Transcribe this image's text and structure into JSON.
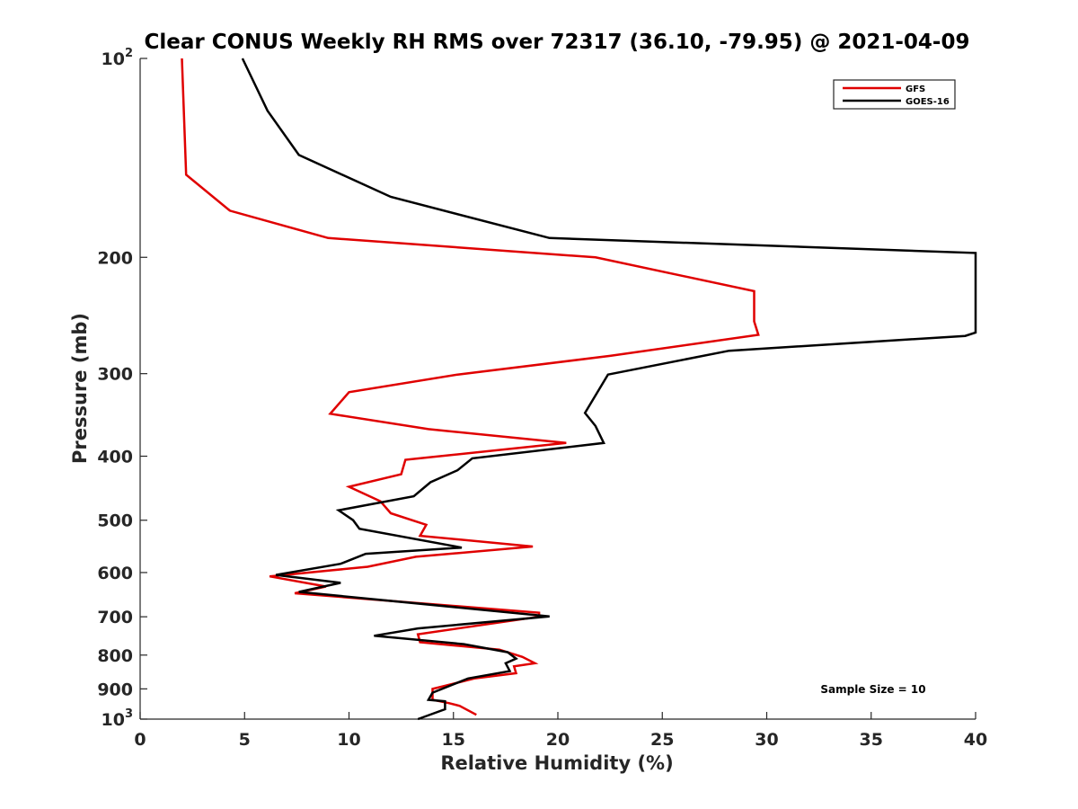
{
  "chart_data": {
    "type": "line",
    "title": "Clear CONUS Weekly RH RMS over 72317 (36.10, -79.95) @ 2021-04-09",
    "xlabel": "Relative Humidity (%)",
    "ylabel": "Pressure (mb)",
    "xlim": [
      0,
      40
    ],
    "ylim": [
      100,
      1000
    ],
    "y_scale": "log",
    "y_reversed": true,
    "grid": false,
    "legend_position": "top-right",
    "x_ticks": [
      0,
      5,
      10,
      15,
      20,
      25,
      30,
      35,
      40
    ],
    "y_ticks": [
      {
        "value": 100,
        "base": "10",
        "exp": "2"
      },
      {
        "value": 200,
        "label": "200"
      },
      {
        "value": 300,
        "label": "300"
      },
      {
        "value": 400,
        "label": "400"
      },
      {
        "value": 500,
        "label": "500"
      },
      {
        "value": 600,
        "label": "600"
      },
      {
        "value": 700,
        "label": "700"
      },
      {
        "value": 800,
        "label": "800"
      },
      {
        "value": 900,
        "label": "900"
      },
      {
        "value": 1000,
        "base": "10",
        "exp": "3"
      }
    ],
    "series": [
      {
        "name": "GFS",
        "color": "#e00000",
        "points": [
          {
            "x": 2.0,
            "y": 100
          },
          {
            "x": 2.2,
            "y": 150
          },
          {
            "x": 4.3,
            "y": 170
          },
          {
            "x": 9.0,
            "y": 187
          },
          {
            "x": 21.8,
            "y": 200
          },
          {
            "x": 29.4,
            "y": 225
          },
          {
            "x": 29.4,
            "y": 250
          },
          {
            "x": 29.6,
            "y": 262
          },
          {
            "x": 22.5,
            "y": 282
          },
          {
            "x": 15.2,
            "y": 301
          },
          {
            "x": 10.0,
            "y": 320
          },
          {
            "x": 9.1,
            "y": 345
          },
          {
            "x": 13.8,
            "y": 364
          },
          {
            "x": 20.4,
            "y": 382
          },
          {
            "x": 12.7,
            "y": 405
          },
          {
            "x": 12.5,
            "y": 426
          },
          {
            "x": 10.0,
            "y": 445
          },
          {
            "x": 11.5,
            "y": 468
          },
          {
            "x": 12.0,
            "y": 488
          },
          {
            "x": 13.7,
            "y": 508
          },
          {
            "x": 13.4,
            "y": 528
          },
          {
            "x": 18.8,
            "y": 548
          },
          {
            "x": 13.2,
            "y": 568
          },
          {
            "x": 10.9,
            "y": 588
          },
          {
            "x": 6.2,
            "y": 608
          },
          {
            "x": 8.9,
            "y": 630
          },
          {
            "x": 7.4,
            "y": 645
          },
          {
            "x": 19.1,
            "y": 690
          },
          {
            "x": 19.1,
            "y": 700
          },
          {
            "x": 13.3,
            "y": 744
          },
          {
            "x": 13.4,
            "y": 765
          },
          {
            "x": 17.2,
            "y": 785
          },
          {
            "x": 18.3,
            "y": 805
          },
          {
            "x": 18.9,
            "y": 823
          },
          {
            "x": 17.9,
            "y": 832
          },
          {
            "x": 18.0,
            "y": 852
          },
          {
            "x": 16.0,
            "y": 868
          },
          {
            "x": 14.0,
            "y": 900
          },
          {
            "x": 14.0,
            "y": 935
          },
          {
            "x": 14.8,
            "y": 946
          },
          {
            "x": 15.3,
            "y": 955
          },
          {
            "x": 16.1,
            "y": 985
          }
        ]
      },
      {
        "name": "GOES-16",
        "color": "#000000",
        "points": [
          {
            "x": 4.9,
            "y": 100
          },
          {
            "x": 6.1,
            "y": 120
          },
          {
            "x": 7.6,
            "y": 140
          },
          {
            "x": 12.0,
            "y": 162
          },
          {
            "x": 19.6,
            "y": 187
          },
          {
            "x": 40.0,
            "y": 197
          },
          {
            "x": 40.0,
            "y": 260
          },
          {
            "x": 39.5,
            "y": 263
          },
          {
            "x": 28.2,
            "y": 277
          },
          {
            "x": 22.4,
            "y": 301
          },
          {
            "x": 21.3,
            "y": 344
          },
          {
            "x": 21.8,
            "y": 360
          },
          {
            "x": 22.2,
            "y": 382
          },
          {
            "x": 15.9,
            "y": 403
          },
          {
            "x": 15.2,
            "y": 420
          },
          {
            "x": 13.9,
            "y": 438
          },
          {
            "x": 13.1,
            "y": 460
          },
          {
            "x": 9.5,
            "y": 483
          },
          {
            "x": 10.2,
            "y": 500
          },
          {
            "x": 10.5,
            "y": 515
          },
          {
            "x": 15.4,
            "y": 550
          },
          {
            "x": 10.8,
            "y": 562
          },
          {
            "x": 9.6,
            "y": 582
          },
          {
            "x": 6.5,
            "y": 605
          },
          {
            "x": 9.6,
            "y": 622
          },
          {
            "x": 7.6,
            "y": 642
          },
          {
            "x": 19.6,
            "y": 699
          },
          {
            "x": 13.3,
            "y": 729
          },
          {
            "x": 11.2,
            "y": 748
          },
          {
            "x": 15.5,
            "y": 770
          },
          {
            "x": 17.6,
            "y": 792
          },
          {
            "x": 18.0,
            "y": 810
          },
          {
            "x": 17.5,
            "y": 823
          },
          {
            "x": 17.7,
            "y": 846
          },
          {
            "x": 15.7,
            "y": 868
          },
          {
            "x": 14.0,
            "y": 912
          },
          {
            "x": 13.8,
            "y": 935
          },
          {
            "x": 14.6,
            "y": 940
          },
          {
            "x": 14.6,
            "y": 966
          },
          {
            "x": 13.3,
            "y": 1000
          }
        ]
      }
    ],
    "annotation": "Sample Size = 10"
  }
}
